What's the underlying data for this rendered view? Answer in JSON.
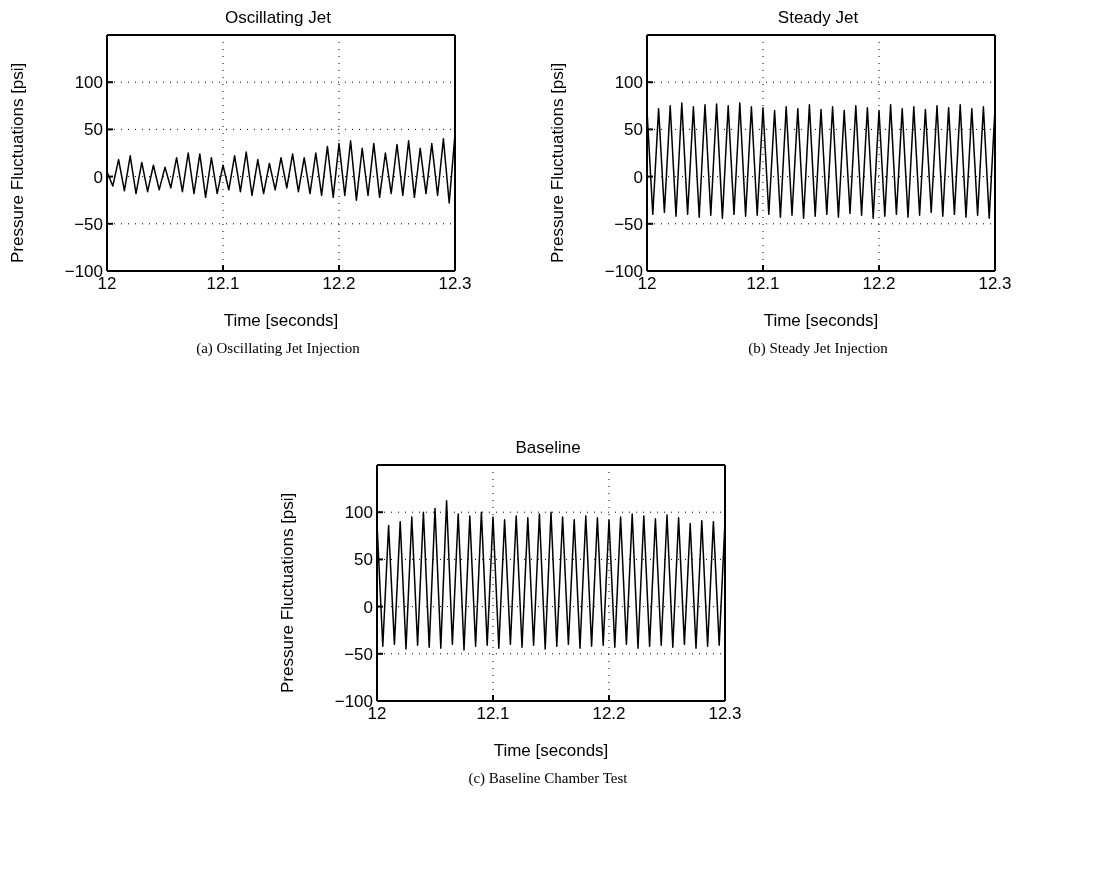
{
  "chart_data": [
    {
      "type": "line",
      "title": "Oscillating Jet",
      "xlabel": "Time [seconds]",
      "ylabel": "Pressure Fluctuations [psi]",
      "annotations": [
        "(a) Oscillating Jet Injection"
      ],
      "xlim": [
        12,
        12.3
      ],
      "xticks": [
        12,
        12.1,
        12.2,
        12.3
      ],
      "ylim": [
        -100,
        150
      ],
      "yticks": [
        -100,
        -50,
        0,
        50,
        100
      ],
      "grid": true,
      "x": [
        12,
        12.005,
        12.01,
        12.015,
        12.02,
        12.025,
        12.03,
        12.035,
        12.04,
        12.045,
        12.05,
        12.055,
        12.06,
        12.065,
        12.07,
        12.075,
        12.08,
        12.085,
        12.09,
        12.095,
        12.1,
        12.105,
        12.11,
        12.115,
        12.12,
        12.125,
        12.13,
        12.135,
        12.14,
        12.145,
        12.15,
        12.155,
        12.16,
        12.165,
        12.17,
        12.175,
        12.18,
        12.185,
        12.19,
        12.195,
        12.2,
        12.205,
        12.21,
        12.215,
        12.22,
        12.225,
        12.23,
        12.235,
        12.24,
        12.245,
        12.25,
        12.255,
        12.26,
        12.265,
        12.27,
        12.275,
        12.28,
        12.285,
        12.29,
        12.295,
        12.3
      ],
      "series": [
        {
          "color": "#000000",
          "values": [
            5,
            -10,
            18,
            -15,
            22,
            -18,
            15,
            -16,
            12,
            -14,
            10,
            -12,
            20,
            -16,
            25,
            -18,
            24,
            -22,
            20,
            -18,
            12,
            -14,
            22,
            -16,
            26,
            -20,
            18,
            -18,
            14,
            -14,
            20,
            -12,
            24,
            -16,
            20,
            -18,
            25,
            -20,
            32,
            -22,
            35,
            -20,
            38,
            -25,
            30,
            -20,
            35,
            -22,
            25,
            -18,
            34,
            -20,
            38,
            -22,
            30,
            -18,
            35,
            -20,
            40,
            -28,
            45
          ]
        }
      ]
    },
    {
      "type": "line",
      "title": "Steady Jet",
      "xlabel": "Time [seconds]",
      "ylabel": "Pressure Fluctuations [psi]",
      "annotations": [
        "(b) Steady Jet Injection"
      ],
      "xlim": [
        12,
        12.3
      ],
      "xticks": [
        12,
        12.1,
        12.2,
        12.3
      ],
      "ylim": [
        -100,
        150
      ],
      "yticks": [
        -100,
        -50,
        0,
        50,
        100
      ],
      "grid": true,
      "x": [
        12,
        12.005,
        12.01,
        12.015,
        12.02,
        12.025,
        12.03,
        12.035,
        12.04,
        12.045,
        12.05,
        12.055,
        12.06,
        12.065,
        12.07,
        12.075,
        12.08,
        12.085,
        12.09,
        12.095,
        12.1,
        12.105,
        12.11,
        12.115,
        12.12,
        12.125,
        12.13,
        12.135,
        12.14,
        12.145,
        12.15,
        12.155,
        12.16,
        12.165,
        12.17,
        12.175,
        12.18,
        12.185,
        12.19,
        12.195,
        12.2,
        12.205,
        12.21,
        12.215,
        12.22,
        12.225,
        12.23,
        12.235,
        12.24,
        12.245,
        12.25,
        12.255,
        12.26,
        12.265,
        12.27,
        12.275,
        12.28,
        12.285,
        12.29,
        12.295,
        12.3
      ],
      "series": [
        {
          "color": "#000000",
          "values": [
            70,
            -40,
            72,
            -38,
            75,
            -42,
            78,
            -40,
            74,
            -43,
            76,
            -41,
            77,
            -44,
            75,
            -40,
            78,
            -42,
            74,
            -41,
            73,
            -40,
            70,
            -43,
            74,
            -41,
            72,
            -44,
            76,
            -42,
            71,
            -40,
            74,
            -43,
            70,
            -39,
            75,
            -41,
            73,
            -44,
            70,
            -42,
            76,
            -40,
            72,
            -43,
            74,
            -41,
            71,
            -38,
            75,
            -42,
            73,
            -40,
            76,
            -43,
            72,
            -41,
            74,
            -44,
            72
          ]
        }
      ]
    },
    {
      "type": "line",
      "title": "Baseline",
      "xlabel": "Time [seconds]",
      "ylabel": "Pressure Fluctuations [psi]",
      "annotations": [
        "(c) Baseline Chamber Test"
      ],
      "xlim": [
        12,
        12.3
      ],
      "xticks": [
        12,
        12.1,
        12.2,
        12.3
      ],
      "ylim": [
        -100,
        150
      ],
      "yticks": [
        -100,
        -50,
        0,
        50,
        100
      ],
      "grid": true,
      "x": [
        12,
        12.005,
        12.01,
        12.015,
        12.02,
        12.025,
        12.03,
        12.035,
        12.04,
        12.045,
        12.05,
        12.055,
        12.06,
        12.065,
        12.07,
        12.075,
        12.08,
        12.085,
        12.09,
        12.095,
        12.1,
        12.105,
        12.11,
        12.115,
        12.12,
        12.125,
        12.13,
        12.135,
        12.14,
        12.145,
        12.15,
        12.155,
        12.16,
        12.165,
        12.17,
        12.175,
        12.18,
        12.185,
        12.19,
        12.195,
        12.2,
        12.205,
        12.21,
        12.215,
        12.22,
        12.225,
        12.23,
        12.235,
        12.24,
        12.245,
        12.25,
        12.255,
        12.26,
        12.265,
        12.27,
        12.275,
        12.28,
        12.285,
        12.29,
        12.295,
        12.3
      ],
      "series": [
        {
          "color": "#000000",
          "values": [
            88,
            -42,
            86,
            -40,
            90,
            -45,
            95,
            -41,
            100,
            -43,
            104,
            -44,
            112,
            -40,
            98,
            -46,
            96,
            -42,
            100,
            -41,
            95,
            -44,
            92,
            -40,
            96,
            -43,
            94,
            -41,
            98,
            -45,
            100,
            -42,
            95,
            -40,
            92,
            -44,
            96,
            -42,
            94,
            -41,
            92,
            -43,
            95,
            -40,
            98,
            -44,
            96,
            -42,
            93,
            -41,
            97,
            -43,
            94,
            -40,
            88,
            -44,
            91,
            -42,
            90,
            -41,
            90
          ]
        }
      ]
    }
  ]
}
